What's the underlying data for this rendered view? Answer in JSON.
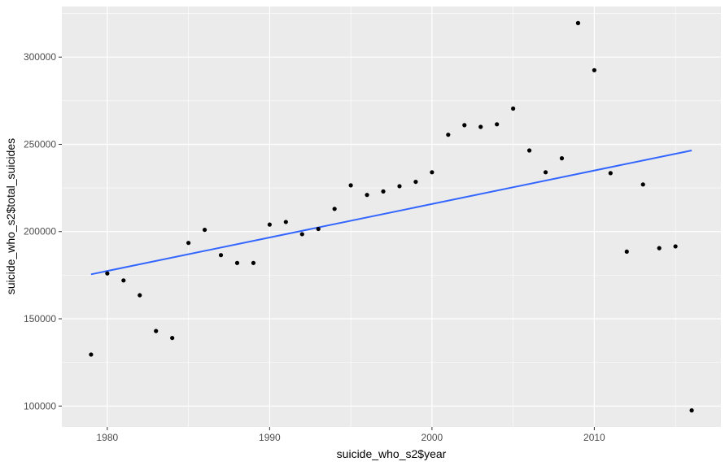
{
  "chart_data": {
    "type": "scatter",
    "title": "",
    "xlabel": "suicide_who_s2$year",
    "ylabel": "suicide_who_s2$total_suicides",
    "xlim": [
      1977.2,
      2017.8
    ],
    "ylim": [
      88000,
      329000
    ],
    "x_ticks": [
      1980,
      1990,
      2000,
      2010
    ],
    "y_ticks": [
      100000,
      150000,
      200000,
      250000,
      300000
    ],
    "x_tick_labels": [
      "1980",
      "1990",
      "2000",
      "2010"
    ],
    "y_tick_labels": [
      "100000",
      "150000",
      "200000",
      "250000",
      "300000"
    ],
    "grid": true,
    "legend": "none",
    "points": [
      {
        "x": 1979,
        "y": 129500
      },
      {
        "x": 1980,
        "y": 176000
      },
      {
        "x": 1981,
        "y": 172000
      },
      {
        "x": 1982,
        "y": 163500
      },
      {
        "x": 1983,
        "y": 143000
      },
      {
        "x": 1984,
        "y": 139000
      },
      {
        "x": 1985,
        "y": 193500
      },
      {
        "x": 1986,
        "y": 201000
      },
      {
        "x": 1987,
        "y": 186500
      },
      {
        "x": 1988,
        "y": 182000
      },
      {
        "x": 1989,
        "y": 182000
      },
      {
        "x": 1990,
        "y": 204000
      },
      {
        "x": 1991,
        "y": 205500
      },
      {
        "x": 1992,
        "y": 198500
      },
      {
        "x": 1993,
        "y": 201500
      },
      {
        "x": 1994,
        "y": 213000
      },
      {
        "x": 1995,
        "y": 226500
      },
      {
        "x": 1996,
        "y": 221000
      },
      {
        "x": 1997,
        "y": 223000
      },
      {
        "x": 1998,
        "y": 226000
      },
      {
        "x": 1999,
        "y": 228500
      },
      {
        "x": 2000,
        "y": 234000
      },
      {
        "x": 2001,
        "y": 255500
      },
      {
        "x": 2002,
        "y": 261000
      },
      {
        "x": 2003,
        "y": 260000
      },
      {
        "x": 2004,
        "y": 261500
      },
      {
        "x": 2005,
        "y": 270500
      },
      {
        "x": 2006,
        "y": 246500
      },
      {
        "x": 2007,
        "y": 234000
      },
      {
        "x": 2008,
        "y": 242000
      },
      {
        "x": 2009,
        "y": 319500
      },
      {
        "x": 2010,
        "y": 292500
      },
      {
        "x": 2011,
        "y": 233500
      },
      {
        "x": 2012,
        "y": 188500
      },
      {
        "x": 2013,
        "y": 227000
      },
      {
        "x": 2014,
        "y": 190500
      },
      {
        "x": 2015,
        "y": 191500
      },
      {
        "x": 2016,
        "y": 97500
      }
    ],
    "trend_line": {
      "x": [
        1979,
        2016
      ],
      "y": [
        175500,
        246500
      ]
    },
    "colors": {
      "panel_background": "#ebebeb",
      "grid_major": "#ffffff",
      "point": "#000000",
      "trend_line": "#3366ff",
      "tick_label": "#4d4d4d",
      "tick_mark": "#333333",
      "axis_title": "#000000"
    }
  }
}
